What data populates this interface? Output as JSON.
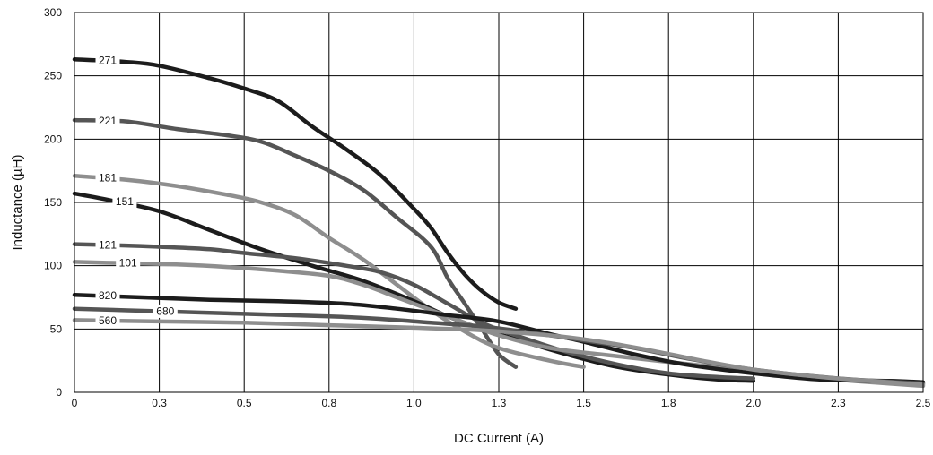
{
  "chart_data": {
    "type": "line",
    "title": "",
    "xlabel": "DC Current (A)",
    "ylabel": "Inductance (µH)",
    "xlim": [
      0,
      2.5
    ],
    "ylim": [
      0,
      300
    ],
    "x_ticks": [
      0,
      0.25,
      0.5,
      0.75,
      1.0,
      1.25,
      1.5,
      1.75,
      2.0,
      2.25,
      2.5
    ],
    "x_tick_labels": [
      "0",
      "0.3",
      "0.5",
      "0.8",
      "1.0",
      "1.3",
      "1.5",
      "1.8",
      "2.0",
      "2.3",
      "2.5"
    ],
    "y_ticks": [
      0,
      50,
      100,
      150,
      200,
      250,
      300
    ],
    "y_tick_labels": [
      "0",
      "50",
      "100",
      "150",
      "200",
      "250",
      "300"
    ],
    "grid": true,
    "series": [
      {
        "name": "271",
        "color": "#1c1c1c",
        "label_x": 0.07,
        "points": [
          [
            0,
            263
          ],
          [
            0.15,
            261
          ],
          [
            0.25,
            258
          ],
          [
            0.4,
            248
          ],
          [
            0.5,
            240
          ],
          [
            0.6,
            230
          ],
          [
            0.7,
            210
          ],
          [
            0.8,
            192
          ],
          [
            0.9,
            172
          ],
          [
            1.0,
            145
          ],
          [
            1.05,
            130
          ],
          [
            1.1,
            110
          ],
          [
            1.15,
            93
          ],
          [
            1.2,
            80
          ],
          [
            1.25,
            71
          ],
          [
            1.3,
            66
          ]
        ]
      },
      {
        "name": "221",
        "color": "#555555",
        "label_x": 0.07,
        "points": [
          [
            0,
            215
          ],
          [
            0.15,
            214
          ],
          [
            0.3,
            208
          ],
          [
            0.45,
            203
          ],
          [
            0.55,
            198
          ],
          [
            0.65,
            187
          ],
          [
            0.75,
            175
          ],
          [
            0.85,
            160
          ],
          [
            0.95,
            138
          ],
          [
            1.05,
            115
          ],
          [
            1.1,
            90
          ],
          [
            1.15,
            70
          ],
          [
            1.2,
            50
          ],
          [
            1.25,
            30
          ],
          [
            1.3,
            20
          ]
        ]
      },
      {
        "name": "181",
        "color": "#8e8e8e",
        "label_x": 0.07,
        "points": [
          [
            0,
            171
          ],
          [
            0.15,
            168
          ],
          [
            0.3,
            163
          ],
          [
            0.45,
            156
          ],
          [
            0.55,
            150
          ],
          [
            0.65,
            140
          ],
          [
            0.75,
            122
          ],
          [
            0.85,
            105
          ],
          [
            0.95,
            85
          ],
          [
            1.05,
            65
          ],
          [
            1.15,
            48
          ],
          [
            1.25,
            35
          ],
          [
            1.4,
            25
          ],
          [
            1.5,
            20
          ]
        ]
      },
      {
        "name": "151",
        "color": "#1c1c1c",
        "label_x": 0.12,
        "points": [
          [
            0,
            157
          ],
          [
            0.1,
            152
          ],
          [
            0.25,
            143
          ],
          [
            0.4,
            128
          ],
          [
            0.55,
            113
          ],
          [
            0.7,
            100
          ],
          [
            0.85,
            88
          ],
          [
            1.0,
            72
          ],
          [
            1.1,
            60
          ],
          [
            1.2,
            50
          ],
          [
            1.3,
            42
          ],
          [
            1.45,
            30
          ],
          [
            1.6,
            20
          ],
          [
            1.75,
            14
          ],
          [
            1.9,
            10
          ],
          [
            2.0,
            9
          ]
        ]
      },
      {
        "name": "121",
        "color": "#555555",
        "label_x": 0.07,
        "points": [
          [
            0,
            117
          ],
          [
            0.15,
            116
          ],
          [
            0.25,
            115
          ],
          [
            0.4,
            113
          ],
          [
            0.5,
            110
          ],
          [
            0.65,
            106
          ],
          [
            0.8,
            100
          ],
          [
            0.9,
            95
          ],
          [
            1.0,
            85
          ],
          [
            1.1,
            70
          ],
          [
            1.2,
            55
          ],
          [
            1.3,
            45
          ],
          [
            1.45,
            32
          ],
          [
            1.6,
            22
          ],
          [
            1.75,
            15
          ],
          [
            1.9,
            12
          ],
          [
            2.0,
            11
          ]
        ]
      },
      {
        "name": "101",
        "color": "#8e8e8e",
        "label_x": 0.13,
        "points": [
          [
            0,
            103
          ],
          [
            0.15,
            102
          ],
          [
            0.3,
            101
          ],
          [
            0.45,
            99
          ],
          [
            0.6,
            96
          ],
          [
            0.75,
            92
          ],
          [
            0.85,
            85
          ],
          [
            0.95,
            75
          ],
          [
            1.05,
            65
          ],
          [
            1.15,
            55
          ],
          [
            1.25,
            45
          ],
          [
            1.4,
            35
          ],
          [
            1.55,
            30
          ],
          [
            1.75,
            24
          ],
          [
            2.0,
            17
          ],
          [
            2.25,
            10
          ],
          [
            2.5,
            5
          ]
        ]
      },
      {
        "name": "820",
        "color": "#1c1c1c",
        "label_x": 0.07,
        "points": [
          [
            0,
            77
          ],
          [
            0.2,
            75
          ],
          [
            0.4,
            73
          ],
          [
            0.6,
            72
          ],
          [
            0.8,
            70
          ],
          [
            0.95,
            66
          ],
          [
            1.1,
            61
          ],
          [
            1.25,
            56
          ],
          [
            1.4,
            46
          ],
          [
            1.5,
            40
          ],
          [
            1.65,
            30
          ],
          [
            1.8,
            22
          ],
          [
            2.0,
            15
          ],
          [
            2.2,
            10
          ],
          [
            2.4,
            9
          ],
          [
            2.5,
            8
          ]
        ]
      },
      {
        "name": "680",
        "color": "#555555",
        "label_x": 0.24,
        "points": [
          [
            0,
            66
          ],
          [
            0.25,
            64
          ],
          [
            0.5,
            62
          ],
          [
            0.75,
            60
          ],
          [
            0.9,
            58
          ],
          [
            1.05,
            55
          ],
          [
            1.2,
            52
          ],
          [
            1.35,
            47
          ],
          [
            1.5,
            41
          ],
          [
            1.65,
            35
          ],
          [
            1.8,
            27
          ],
          [
            2.0,
            18
          ],
          [
            2.25,
            11
          ],
          [
            2.5,
            7
          ]
        ]
      },
      {
        "name": "560",
        "color": "#8e8e8e",
        "label_x": 0.07,
        "points": [
          [
            0,
            57
          ],
          [
            0.25,
            56
          ],
          [
            0.5,
            55
          ],
          [
            0.75,
            53
          ],
          [
            1.0,
            51
          ],
          [
            1.2,
            49
          ],
          [
            1.4,
            45
          ],
          [
            1.55,
            40
          ],
          [
            1.7,
            33
          ],
          [
            1.85,
            25
          ],
          [
            2.0,
            18
          ],
          [
            2.2,
            12
          ],
          [
            2.35,
            9
          ],
          [
            2.5,
            6
          ]
        ]
      }
    ]
  }
}
